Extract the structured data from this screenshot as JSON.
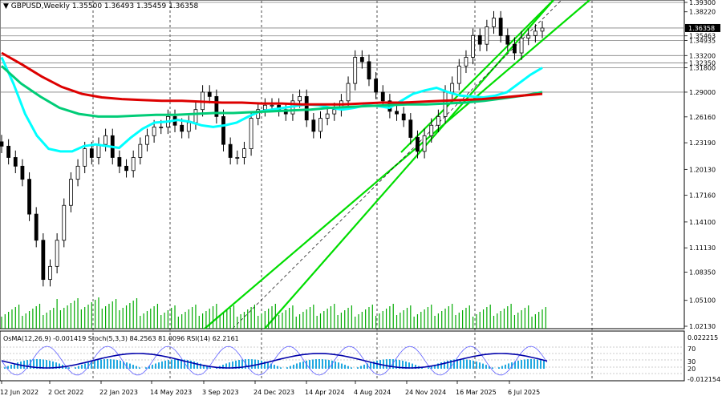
{
  "chart_data": {
    "type": "candlestick",
    "title": "GBPUSD,Weekly",
    "ohlc_header": "1.35500 1.36493 1.35459 1.36358",
    "ylim": [
      1.0213,
      1.393
    ],
    "price_ticks": [
      "1.39300",
      "1.38220",
      "1.35463",
      "1.34935",
      "1.33200",
      "1.32350",
      "1.31800",
      "1.29000",
      "1.26160",
      "1.23190",
      "1.20130",
      "1.17160",
      "1.14100",
      "1.11130",
      "1.08350",
      "1.05100",
      "1.02130"
    ],
    "price_markers": [
      {
        "label": "1.36358",
        "value": 1.36358,
        "color": "#ffffff",
        "bg": "#000000"
      }
    ],
    "horizontal_levels": [
      1.393,
      1.3636,
      1.3546,
      1.3494,
      1.332,
      1.3235,
      1.318,
      1.29
    ],
    "x_labels": [
      "12 Jun 2022",
      "2 Oct 2022",
      "22 Jan 2023",
      "14 May 2023",
      "3 Sep 2023",
      "24 Dec 2023",
      "14 Apr 2024",
      "4 Aug 2024",
      "24 Nov 2024",
      "16 Mar 2025",
      "6 Jul 2025"
    ],
    "vertical_separator_labels": [
      "2 Oct 2022",
      "14 May 2023",
      "24 Dec 2023",
      "4 Aug 2024",
      "16 Mar 2025",
      "6 Jul 2025"
    ],
    "series": [
      {
        "name": "",
        "color": "#000000",
        "kind": "price",
        "values": [
          1.228,
          1.215,
          1.205,
          1.19,
          1.15,
          1.12,
          1.075,
          1.09,
          1.12,
          1.16,
          1.19,
          1.205,
          1.225,
          1.215,
          1.23,
          1.24,
          1.215,
          1.205,
          1.2,
          1.215,
          1.23,
          1.24,
          1.25,
          1.25,
          1.262,
          1.252,
          1.245,
          1.255,
          1.27,
          1.29,
          1.285,
          1.262,
          1.23,
          1.215,
          1.215,
          1.225,
          1.26,
          1.27,
          1.275,
          1.275,
          1.27,
          1.265,
          1.28,
          1.285,
          1.258,
          1.245,
          1.26,
          1.265,
          1.27,
          1.28,
          1.3,
          1.33,
          1.325,
          1.305,
          1.29,
          1.28,
          1.268,
          1.265,
          1.258,
          1.238,
          1.222,
          1.24,
          1.252,
          1.262,
          1.29,
          1.3,
          1.32,
          1.33,
          1.355,
          1.345,
          1.365,
          1.375,
          1.355,
          1.345,
          1.335,
          1.352,
          1.355,
          1.36,
          1.3636
        ]
      },
      {
        "name": "",
        "color": "#00ffff",
        "kind": "ma",
        "values": [
          1.33,
          1.3,
          1.265,
          1.24,
          1.225,
          1.222,
          1.222,
          1.228,
          1.23,
          1.228,
          1.226,
          1.238,
          1.248,
          1.255,
          1.256,
          1.258,
          1.256,
          1.252,
          1.25,
          1.252,
          1.255,
          1.262,
          1.268,
          1.27,
          1.272,
          1.274,
          1.276,
          1.275,
          1.272,
          1.27,
          1.272,
          1.275,
          1.274,
          1.272,
          1.28,
          1.288,
          1.292,
          1.295,
          1.29,
          1.286,
          1.285,
          1.284,
          1.286,
          1.29,
          1.3,
          1.31,
          1.318
        ]
      },
      {
        "name": "",
        "color": "#00cc77",
        "kind": "ma",
        "values": [
          1.32,
          1.3,
          1.285,
          1.272,
          1.265,
          1.262,
          1.262,
          1.263,
          1.264,
          1.264,
          1.265,
          1.266,
          1.266,
          1.267,
          1.268,
          1.269,
          1.27,
          1.272,
          1.273,
          1.274,
          1.275,
          1.276,
          1.276,
          1.277,
          1.278,
          1.28,
          1.283,
          1.286,
          1.29
        ]
      },
      {
        "name": "",
        "color": "#dd0000",
        "kind": "ma",
        "values": [
          1.335,
          1.322,
          1.308,
          1.296,
          1.288,
          1.284,
          1.282,
          1.281,
          1.28,
          1.28,
          1.279,
          1.278,
          1.278,
          1.277,
          1.277,
          1.276,
          1.276,
          1.276,
          1.277,
          1.278,
          1.278,
          1.279,
          1.28,
          1.281,
          1.282,
          1.284,
          1.286,
          1.288
        ]
      }
    ],
    "osc_label": "OsMA(12,26,9) -0.001419  Stoch(5,3,3) 84.2563 81.0096  RSI(14) 62.2161",
    "osc_ticks": [
      "0.022215",
      "70",
      "30",
      "20",
      "-0.012154"
    ],
    "grid": false,
    "legend": "none"
  }
}
